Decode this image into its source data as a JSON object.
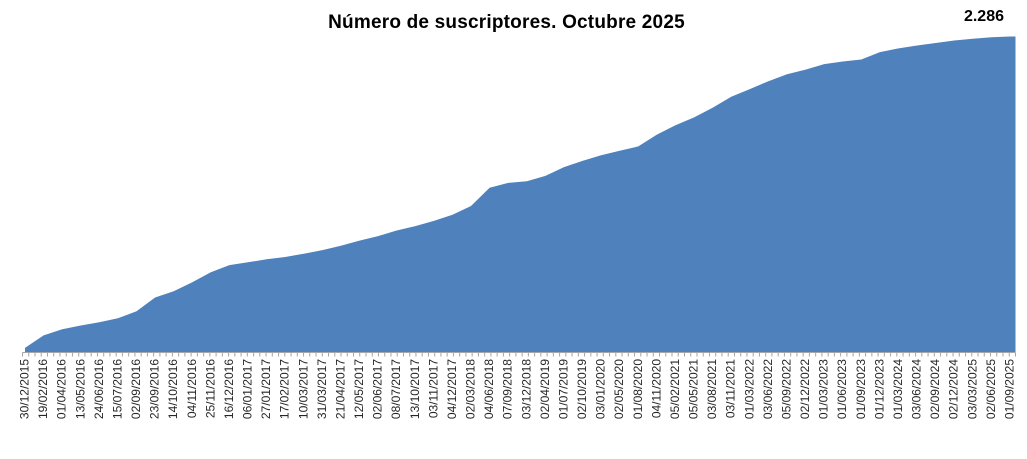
{
  "chart_data": {
    "type": "area",
    "title": "Número de suscriptores. Octubre 2025",
    "final_value_label": "2.286",
    "final_value": 2286,
    "xlabel": "",
    "ylabel": "",
    "ylim": [
      0,
      2286
    ],
    "y_axis_visible": false,
    "grid": false,
    "legend_position": "none",
    "area_color": "#4F81BD",
    "axis_color": "#A6A6A6",
    "label_color": "#262626",
    "minor_ticks_per_label": 3,
    "categories": [
      "30/12/2015",
      "19/02/2016",
      "01/04/2016",
      "13/05/2016",
      "24/06/2016",
      "15/07/2016",
      "02/09/2016",
      "23/09/2016",
      "14/10/2016",
      "04/11/2016",
      "25/11/2016",
      "16/12/2016",
      "06/01/2017",
      "27/01/2017",
      "17/02/2017",
      "10/03/2017",
      "31/03/2017",
      "21/04/2017",
      "12/05/2017",
      "02/06/2017",
      "08/07/2017",
      "13/10/2017",
      "03/11/2017",
      "04/12/2017",
      "02/03/2018",
      "04/06/2018",
      "07/09/2018",
      "03/12/2018",
      "02/04/2019",
      "01/07/2019",
      "02/10/2019",
      "03/01/2020",
      "02/05/2020",
      "01/08/2020",
      "04/11/2020",
      "05/02/2021",
      "05/05/2021",
      "03/08/2021",
      "03/11/2021",
      "01/03/2022",
      "03/06/2022",
      "05/09/2022",
      "02/12/2022",
      "01/03/2023",
      "01/06/2023",
      "01/09/2023",
      "01/12/2023",
      "01/03/2024",
      "03/06/2024",
      "02/09/2024",
      "02/12/2024",
      "03/03/2025",
      "02/06/2025",
      "01/09/2025"
    ],
    "series": [
      {
        "name": "Número de suscriptores",
        "values": [
          30,
          120,
          165,
          192,
          215,
          245,
          295,
          395,
          440,
          505,
          578,
          630,
          650,
          672,
          688,
          712,
          738,
          770,
          807,
          840,
          880,
          912,
          950,
          995,
          1058,
          1190,
          1225,
          1237,
          1276,
          1340,
          1385,
          1425,
          1458,
          1490,
          1575,
          1643,
          1700,
          1770,
          1850,
          1905,
          1962,
          2013,
          2046,
          2086,
          2105,
          2119,
          2173,
          2200,
          2221,
          2239,
          2257,
          2270,
          2280,
          2286
        ]
      }
    ]
  }
}
